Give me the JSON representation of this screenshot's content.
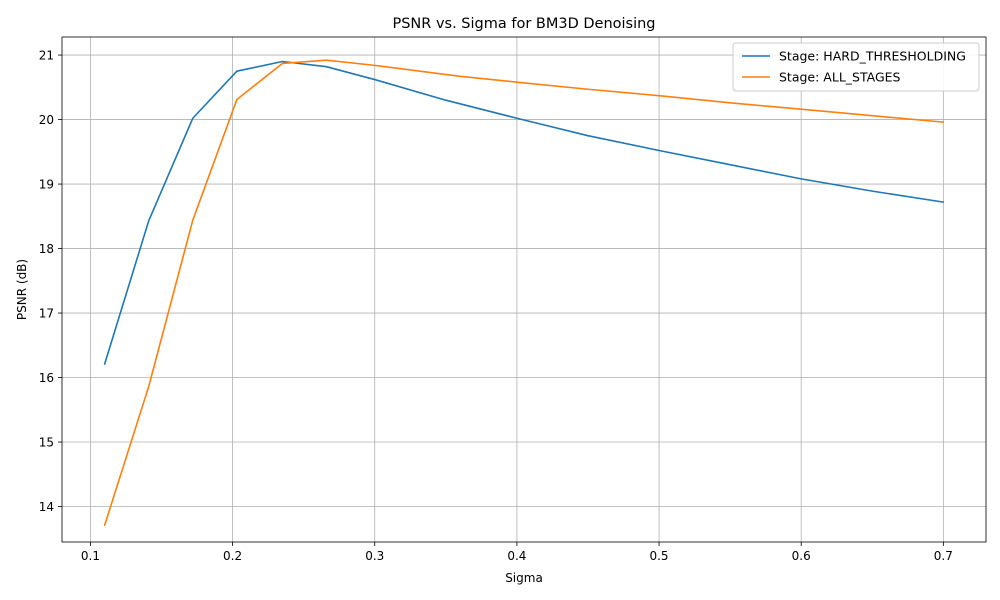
{
  "chart_data": {
    "type": "line",
    "title": "PSNR vs. Sigma for BM3D Denoising",
    "xlabel": "Sigma",
    "ylabel": "PSNR (dB)",
    "xlim": [
      0.08,
      0.73
    ],
    "ylim": [
      13.45,
      21.28
    ],
    "xticks": [
      0.1,
      0.2,
      0.3,
      0.4,
      0.5,
      0.6,
      0.7
    ],
    "xtick_labels": [
      "0.1",
      "0.2",
      "0.3",
      "0.4",
      "0.5",
      "0.6",
      "0.7"
    ],
    "yticks": [
      14,
      15,
      16,
      17,
      18,
      19,
      20,
      21
    ],
    "ytick_labels": [
      "14",
      "15",
      "16",
      "17",
      "18",
      "19",
      "20",
      "21"
    ],
    "grid": true,
    "legend_position": "top-right",
    "series": [
      {
        "name": "Stage: HARD_THRESHOLDING",
        "color": "#1f77b4",
        "x": [
          0.11,
          0.141,
          0.172,
          0.203,
          0.235,
          0.266,
          0.3,
          0.35,
          0.4,
          0.45,
          0.5,
          0.55,
          0.6,
          0.65,
          0.7
        ],
        "y": [
          16.21,
          18.43,
          20.02,
          20.75,
          20.9,
          20.82,
          20.62,
          20.3,
          20.02,
          19.75,
          19.52,
          19.3,
          19.08,
          18.89,
          18.72
        ]
      },
      {
        "name": "Stage: ALL_STAGES",
        "color": "#ff7f0e",
        "x": [
          0.11,
          0.141,
          0.172,
          0.203,
          0.235,
          0.266,
          0.3,
          0.36,
          0.4,
          0.45,
          0.5,
          0.55,
          0.6,
          0.65,
          0.7
        ],
        "y": [
          13.71,
          15.86,
          18.44,
          20.31,
          20.87,
          20.92,
          20.84,
          20.67,
          20.58,
          20.47,
          20.37,
          20.26,
          20.16,
          20.06,
          19.96
        ]
      }
    ]
  }
}
